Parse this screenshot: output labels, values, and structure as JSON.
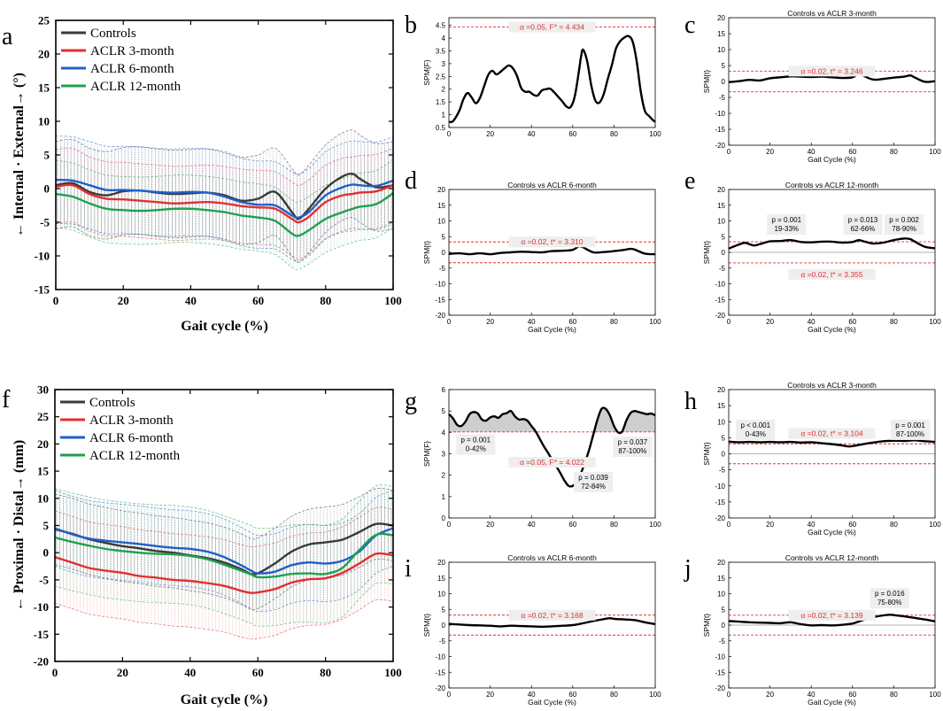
{
  "chart_data": [
    {
      "id": "a",
      "panel_letter": "a",
      "type": "line",
      "title": "",
      "xlabel": "Gait cycle (%)",
      "ylabel": "← Internal · External→ (°)",
      "xlim": [
        0,
        100
      ],
      "ylim": [
        -15,
        25
      ],
      "xticks": [
        0,
        20,
        40,
        60,
        80,
        100
      ],
      "yticks": [
        -15,
        -10,
        -5,
        0,
        5,
        10,
        15,
        20,
        25
      ],
      "legend": [
        "Controls",
        "ACLR 3-month",
        "ACLR 6-month",
        "ACLR 12-month"
      ],
      "legend_position": "top-left",
      "x": [
        0,
        5,
        10,
        15,
        20,
        25,
        30,
        35,
        40,
        45,
        50,
        55,
        60,
        65,
        70,
        72,
        75,
        80,
        85,
        88,
        90,
        95,
        100
      ],
      "series": [
        {
          "name": "Controls",
          "color": "#3a3a3a",
          "values": [
            0.5,
            0.8,
            -0.5,
            -1.0,
            -0.4,
            -0.3,
            -0.6,
            -0.8,
            -0.7,
            -0.6,
            -1.0,
            -1.8,
            -1.5,
            -0.5,
            -3.5,
            -4.5,
            -3.0,
            0.0,
            1.8,
            2.2,
            1.5,
            0.2,
            0.5
          ]
        },
        {
          "name": "ACLR 3-month",
          "color": "#e03030",
          "values": [
            0.3,
            0.5,
            -0.8,
            -1.5,
            -1.6,
            -1.8,
            -2.0,
            -2.2,
            -2.1,
            -2.0,
            -2.2,
            -2.6,
            -2.8,
            -3.0,
            -4.5,
            -5.0,
            -4.2,
            -2.0,
            -1.0,
            -0.8,
            -0.6,
            -0.4,
            0.5
          ]
        },
        {
          "name": "ACLR 6-month",
          "color": "#2060c8",
          "values": [
            1.3,
            1.2,
            0.5,
            -0.2,
            -0.2,
            -0.3,
            -0.5,
            -0.6,
            -0.5,
            -0.6,
            -1.2,
            -2.0,
            -2.4,
            -2.5,
            -4.0,
            -4.3,
            -3.5,
            -1.0,
            0.2,
            0.6,
            0.5,
            0.4,
            1.2
          ]
        },
        {
          "name": "ACLR 12-month",
          "color": "#20a050",
          "values": [
            -0.8,
            -1.2,
            -2.2,
            -3.0,
            -3.2,
            -3.3,
            -3.2,
            -3.0,
            -3.0,
            -3.2,
            -3.5,
            -4.0,
            -4.3,
            -4.8,
            -6.7,
            -7.0,
            -6.2,
            -4.5,
            -3.5,
            -3.0,
            -2.7,
            -2.3,
            -0.7
          ]
        }
      ]
    },
    {
      "id": "b",
      "panel_letter": "b",
      "type": "line",
      "spm_kind": "F",
      "title": "",
      "xlabel": "",
      "ylabel": "SPM{F}",
      "xlim": [
        0,
        100
      ],
      "ylim": [
        0.5,
        4.8
      ],
      "xticks": [
        0,
        20,
        40,
        60,
        80,
        100
      ],
      "yticks": [
        0.5,
        1,
        1.5,
        2,
        2.5,
        3,
        3.5,
        4,
        4.5
      ],
      "threshold": 4.434,
      "threshold_label": "α =0.05,     F* = 4.434",
      "zero_line": false,
      "shade": false,
      "x": [
        0,
        2,
        5,
        7,
        9,
        11,
        13,
        15,
        17,
        19,
        21,
        23,
        25,
        27,
        29,
        31,
        33,
        35,
        37,
        39,
        41,
        43,
        45,
        47,
        49,
        51,
        53,
        55,
        57,
        59,
        61,
        63,
        64,
        65,
        67,
        69,
        71,
        73,
        75,
        77,
        79,
        81,
        83,
        85,
        87,
        89,
        91,
        93,
        95,
        97,
        99,
        100
      ],
      "values": [
        0.72,
        0.75,
        1.15,
        1.6,
        1.85,
        1.68,
        1.45,
        1.65,
        2.1,
        2.55,
        2.72,
        2.58,
        2.68,
        2.82,
        2.93,
        2.82,
        2.52,
        2.05,
        1.9,
        1.9,
        1.78,
        1.75,
        1.95,
        2.0,
        2.02,
        1.88,
        1.7,
        1.52,
        1.32,
        1.3,
        1.72,
        2.7,
        3.25,
        3.55,
        3.1,
        2.15,
        1.55,
        1.48,
        1.8,
        2.4,
        2.95,
        3.6,
        3.88,
        4.02,
        4.08,
        3.88,
        3.1,
        1.9,
        1.15,
        0.95,
        0.78,
        0.72
      ],
      "annotations": []
    },
    {
      "id": "c",
      "panel_letter": "c",
      "type": "line",
      "spm_kind": "t",
      "title": "Controls vs ACLR 3-month",
      "xlabel": "Gait Cycle (%)",
      "ylabel": "SPM{t}",
      "xlim": [
        0,
        100
      ],
      "ylim": [
        -20,
        20
      ],
      "xticks": [
        0,
        20,
        40,
        60,
        80,
        100
      ],
      "yticks": [
        -20,
        -15,
        -10,
        -5,
        0,
        5,
        10,
        15,
        20
      ],
      "threshold": 3.246,
      "threshold_label": "α =0.02,     t* = 3.246",
      "zero_line": false,
      "shade": false,
      "x": [
        0,
        5,
        10,
        15,
        20,
        25,
        30,
        35,
        40,
        45,
        50,
        55,
        60,
        63,
        65,
        70,
        75,
        80,
        85,
        88,
        90,
        95,
        100
      ],
      "values": [
        -0.2,
        0.1,
        0.5,
        0.3,
        1.0,
        1.3,
        1.6,
        1.5,
        1.4,
        1.5,
        1.3,
        1.1,
        1.3,
        2.4,
        1.9,
        0.6,
        0.8,
        1.2,
        1.5,
        1.9,
        1.3,
        -0.1,
        0.1
      ],
      "annotations": []
    },
    {
      "id": "d",
      "panel_letter": "d",
      "type": "line",
      "spm_kind": "t",
      "title": "Controls vs ACLR 6-month",
      "xlabel": "Gait Cycle (%)",
      "ylabel": "SPM{t}",
      "xlim": [
        0,
        100
      ],
      "ylim": [
        -20,
        20
      ],
      "xticks": [
        0,
        20,
        40,
        60,
        80,
        100
      ],
      "yticks": [
        -20,
        -15,
        -10,
        -5,
        0,
        5,
        10,
        15,
        20
      ],
      "threshold": 3.31,
      "threshold_label": "α =0.02,     t* = 3.310",
      "zero_line": false,
      "shade": false,
      "x": [
        0,
        5,
        10,
        15,
        20,
        25,
        30,
        35,
        40,
        45,
        50,
        55,
        60,
        63,
        65,
        70,
        75,
        80,
        85,
        88,
        90,
        95,
        100
      ],
      "values": [
        -0.5,
        -0.3,
        -0.6,
        -0.3,
        -0.6,
        -0.2,
        0.0,
        0.2,
        0.1,
        0.0,
        0.4,
        0.5,
        0.8,
        1.9,
        1.6,
        0.0,
        0.1,
        0.4,
        0.8,
        1.1,
        0.9,
        -0.4,
        -0.6
      ],
      "annotations": []
    },
    {
      "id": "e",
      "panel_letter": "e",
      "type": "line",
      "spm_kind": "t",
      "title": "Controls vs ACLR 12-month",
      "xlabel": "Gait Cycle (%)",
      "ylabel": "SPM{t}",
      "xlim": [
        0,
        100
      ],
      "ylim": [
        -20,
        20
      ],
      "xticks": [
        0,
        20,
        40,
        60,
        80,
        100
      ],
      "yticks": [
        -20,
        -15,
        -10,
        -5,
        0,
        5,
        10,
        15,
        20
      ],
      "threshold": 3.355,
      "threshold_label": "α =0.02,     t* = 3.355",
      "threshold_label_at": -7,
      "zero_line": true,
      "shade": false,
      "x": [
        0,
        5,
        8,
        12,
        15,
        20,
        25,
        30,
        35,
        40,
        45,
        50,
        55,
        60,
        63,
        66,
        70,
        75,
        80,
        85,
        88,
        90,
        95,
        100
      ],
      "values": [
        1.2,
        2.5,
        3.0,
        2.2,
        2.6,
        3.5,
        3.6,
        3.9,
        3.3,
        3.2,
        3.4,
        3.4,
        3.1,
        3.3,
        3.9,
        3.4,
        2.8,
        3.1,
        3.9,
        4.4,
        4.2,
        3.5,
        1.8,
        1.3
      ],
      "annotations": [
        {
          "x": 28,
          "y": 9,
          "lines": [
            "p = 0.001",
            "19-33%"
          ]
        },
        {
          "x": 65,
          "y": 9,
          "lines": [
            "p = 0.013",
            "62-66%"
          ]
        },
        {
          "x": 85,
          "y": 9,
          "lines": [
            "p = 0.002",
            "78-90%"
          ]
        }
      ]
    },
    {
      "id": "f",
      "panel_letter": "f",
      "type": "line",
      "title": "",
      "xlabel": "Gait cycle (%)",
      "ylabel": "← Proximal · Distal→ (mm)",
      "xlim": [
        0,
        100
      ],
      "ylim": [
        -20,
        30
      ],
      "xticks": [
        0,
        20,
        40,
        60,
        80,
        100
      ],
      "yticks": [
        -20,
        -15,
        -10,
        -5,
        0,
        5,
        10,
        15,
        20,
        25,
        30
      ],
      "legend": [
        "Controls",
        "ACLR 3-month",
        "ACLR 6-month",
        "ACLR 12-month"
      ],
      "legend_position": "top-left",
      "x": [
        0,
        5,
        10,
        15,
        20,
        25,
        30,
        35,
        40,
        45,
        50,
        55,
        58,
        60,
        65,
        70,
        75,
        80,
        85,
        90,
        95,
        100
      ],
      "series": [
        {
          "name": "Controls",
          "color": "#3a3a3a",
          "values": [
            4.3,
            3.5,
            2.5,
            1.8,
            1.2,
            0.8,
            0.3,
            0.0,
            -0.5,
            -1.0,
            -1.8,
            -3.0,
            -3.9,
            -3.8,
            -2.0,
            0.2,
            1.5,
            1.9,
            2.4,
            3.8,
            5.3,
            5.0
          ]
        },
        {
          "name": "ACLR 3-month",
          "color": "#e03030",
          "values": [
            -0.8,
            -1.8,
            -2.8,
            -3.3,
            -3.7,
            -4.3,
            -4.6,
            -5.0,
            -5.2,
            -5.6,
            -6.1,
            -7.0,
            -7.4,
            -7.3,
            -6.7,
            -5.5,
            -4.9,
            -4.7,
            -3.7,
            -2.0,
            -0.2,
            -0.5
          ]
        },
        {
          "name": "ACLR 6-month",
          "color": "#2060c8",
          "values": [
            4.5,
            3.4,
            2.6,
            2.2,
            1.9,
            1.6,
            1.2,
            0.9,
            0.7,
            0.2,
            -0.8,
            -2.3,
            -3.3,
            -3.8,
            -3.5,
            -2.3,
            -1.8,
            -2.0,
            -1.5,
            0.2,
            3.2,
            4.5
          ]
        },
        {
          "name": "ACLR 12-month",
          "color": "#20a050",
          "values": [
            2.8,
            2.0,
            1.3,
            0.7,
            0.3,
            0.0,
            -0.2,
            -0.3,
            -0.6,
            -1.2,
            -2.2,
            -3.3,
            -4.0,
            -4.5,
            -4.4,
            -3.9,
            -3.8,
            -3.9,
            -2.8,
            0.5,
            3.3,
            3.2
          ]
        }
      ]
    },
    {
      "id": "g",
      "panel_letter": "g",
      "type": "line",
      "spm_kind": "F",
      "title": "",
      "xlabel": "",
      "ylabel": "SPM{F}",
      "xlim": [
        0,
        100
      ],
      "ylim": [
        0,
        6
      ],
      "xticks": [
        0,
        20,
        40,
        60,
        80,
        100
      ],
      "yticks": [
        0,
        1,
        2,
        3,
        4,
        5,
        6
      ],
      "threshold": 4.022,
      "threshold_label": "α =0.05,     F* = 4.022",
      "threshold_label_at": 2.6,
      "zero_line": false,
      "shade": true,
      "x": [
        0,
        2,
        4,
        6,
        8,
        10,
        12,
        14,
        16,
        18,
        20,
        22,
        24,
        26,
        28,
        30,
        32,
        34,
        36,
        38,
        40,
        42,
        44,
        46,
        48,
        50,
        52,
        54,
        56,
        58,
        60,
        62,
        64,
        66,
        68,
        70,
        72,
        74,
        76,
        78,
        80,
        82,
        84,
        86,
        88,
        90,
        92,
        94,
        96,
        98,
        100
      ],
      "values": [
        4.85,
        4.65,
        4.35,
        4.3,
        4.5,
        4.85,
        4.95,
        4.88,
        4.6,
        4.55,
        4.7,
        4.75,
        4.68,
        4.85,
        4.9,
        5.0,
        4.75,
        4.6,
        4.62,
        4.55,
        4.3,
        4.05,
        3.7,
        3.35,
        3.05,
        2.72,
        2.42,
        2.1,
        1.75,
        1.5,
        1.5,
        1.7,
        2.1,
        2.6,
        3.2,
        3.9,
        4.6,
        5.1,
        5.1,
        4.8,
        4.3,
        4.0,
        4.05,
        4.55,
        4.9,
        5.0,
        4.95,
        4.9,
        4.85,
        4.88,
        4.8
      ],
      "annotations": [
        {
          "x": 13,
          "y": 3.45,
          "lines": [
            "p = 0.001",
            "0-42%"
          ]
        },
        {
          "x": 70,
          "y": 1.7,
          "lines": [
            "p = 0.039",
            "72-84%"
          ]
        },
        {
          "x": 89,
          "y": 3.35,
          "lines": [
            "p = 0.037",
            "87-100%"
          ]
        }
      ]
    },
    {
      "id": "h",
      "panel_letter": "h",
      "type": "line",
      "spm_kind": "t",
      "title": "Controls vs ACLR 3-month",
      "xlabel": "Gait Cycle (%)",
      "ylabel": "SPM{t}",
      "xlim": [
        0,
        100
      ],
      "ylim": [
        -20,
        20
      ],
      "xticks": [
        0,
        20,
        40,
        60,
        80,
        100
      ],
      "yticks": [
        -20,
        -15,
        -10,
        -5,
        0,
        5,
        10,
        15,
        20
      ],
      "threshold": 3.104,
      "threshold_label": "α =0.02,     t* = 3.104",
      "threshold_label_at": 6.3,
      "zero_line": true,
      "shade": false,
      "x": [
        0,
        5,
        10,
        15,
        20,
        25,
        30,
        35,
        40,
        45,
        50,
        55,
        58,
        60,
        65,
        70,
        75,
        80,
        85,
        90,
        95,
        100
      ],
      "values": [
        3.8,
        3.6,
        3.7,
        3.6,
        3.7,
        3.6,
        3.7,
        3.5,
        3.6,
        3.3,
        3.0,
        2.6,
        2.3,
        2.4,
        3.0,
        3.5,
        3.9,
        4.1,
        4.0,
        4.2,
        3.9,
        3.7
      ],
      "annotations": [
        {
          "x": 13,
          "y": 7.6,
          "lines": [
            "p < 0.001",
            "0-43%"
          ]
        },
        {
          "x": 88,
          "y": 7.6,
          "lines": [
            "p = 0.001",
            "87-100%"
          ]
        }
      ]
    },
    {
      "id": "i",
      "panel_letter": "i",
      "type": "line",
      "spm_kind": "t",
      "title": "Controls vs ACLR 6-month",
      "xlabel": "Gait Cycle (%)",
      "ylabel": "SPM{t}",
      "xlim": [
        0,
        100
      ],
      "ylim": [
        -20,
        20
      ],
      "xticks": [
        0,
        20,
        40,
        60,
        80,
        100
      ],
      "yticks": [
        -20,
        -15,
        -10,
        -5,
        0,
        5,
        10,
        15,
        20
      ],
      "threshold": 3.168,
      "threshold_label": "α =0.02,     t* = 3.168",
      "zero_line": false,
      "shade": false,
      "x": [
        0,
        5,
        10,
        15,
        20,
        25,
        30,
        35,
        40,
        45,
        50,
        55,
        60,
        65,
        70,
        75,
        78,
        80,
        85,
        90,
        95,
        100
      ],
      "values": [
        0.4,
        0.2,
        0.0,
        -0.1,
        -0.2,
        -0.4,
        -0.2,
        -0.3,
        -0.4,
        -0.5,
        -0.4,
        -0.2,
        0.0,
        0.6,
        1.3,
        1.9,
        2.2,
        2.0,
        1.8,
        1.6,
        0.9,
        0.3
      ],
      "annotations": []
    },
    {
      "id": "j",
      "panel_letter": "j",
      "type": "line",
      "spm_kind": "t",
      "title": "Controls vs ACLR 12-month",
      "xlabel": "Gait Cycle (%)",
      "ylabel": "SPM{t}",
      "xlim": [
        0,
        100
      ],
      "ylim": [
        -20,
        20
      ],
      "xticks": [
        0,
        20,
        40,
        60,
        80,
        100
      ],
      "yticks": [
        -20,
        -15,
        -10,
        -5,
        0,
        5,
        10,
        15,
        20
      ],
      "threshold": 3.139,
      "threshold_label": "α =0.02,     t* = 3.139",
      "zero_line": true,
      "shade": false,
      "x": [
        0,
        5,
        10,
        15,
        20,
        25,
        30,
        35,
        40,
        45,
        50,
        55,
        60,
        65,
        70,
        75,
        78,
        80,
        85,
        90,
        95,
        100
      ],
      "values": [
        1.3,
        1.1,
        0.9,
        0.8,
        0.7,
        0.6,
        0.9,
        0.3,
        -0.1,
        0.0,
        -0.1,
        0.1,
        0.5,
        1.6,
        2.5,
        3.1,
        3.3,
        3.2,
        2.8,
        2.3,
        1.8,
        1.2
      ],
      "annotations": [
        {
          "x": 78,
          "y": 8.7,
          "lines": [
            "p = 0.016",
            "75-80%"
          ]
        }
      ]
    }
  ]
}
